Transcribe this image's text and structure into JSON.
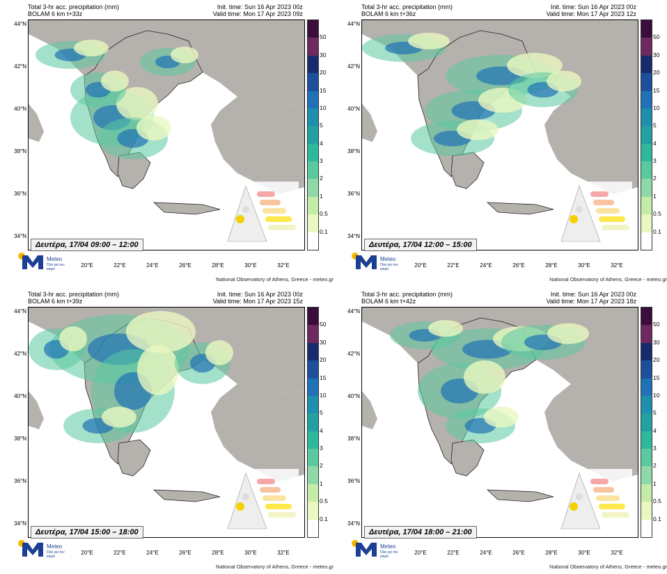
{
  "panels": [
    {
      "title": "Total 3-hr acc. precipitation (mm)",
      "model": "BOLAM 6 km t+33z",
      "init": "Init. time: Sun 16 Apr 2023 00z",
      "valid": "Valid time: Mon 17 Apr 2023 09z",
      "label": "Δευτέρα, 17/04 09:00 – 12:00"
    },
    {
      "title": "Total 3-hr acc. precipitation (mm)",
      "model": "BOLAM 6 km t+36z",
      "init": "Init. time: Sun 16 Apr 2023 00z",
      "valid": "Valid time: Mon 17 Apr 2023 12z",
      "label": "Δευτέρα, 17/04 12:00 – 15:00"
    },
    {
      "title": "Total 3-hr acc. precipitation (mm)",
      "model": "BOLAM 6 km t+39z",
      "init": "Init. time: Sun 16 Apr 2023 00z",
      "valid": "Valid time: Mon 17 Apr 2023 15z",
      "label": "Δευτέρα, 17/04 15:00 – 18:00"
    },
    {
      "title": "Total 3-hr acc. precipitation (mm)",
      "model": "BOLAM 6 km t+42z",
      "init": "Init. time: Sun 16 Apr 2023 00z",
      "valid": "Valid time: Mon 17 Apr 2023 18z",
      "label": "Δευτέρα, 17/04 18:00 – 21:00"
    }
  ],
  "lat_labels": [
    "44°N",
    "42°N",
    "40°N",
    "38°N",
    "36°N",
    "34°N"
  ],
  "lon_labels": [
    "20°E",
    "22°E",
    "24°E",
    "26°E",
    "28°E",
    "30°E",
    "32°E"
  ],
  "colorbar": {
    "labels": [
      "50",
      "30",
      "20",
      "15",
      "10",
      "5",
      "4",
      "3",
      "2",
      "1",
      "0.5",
      "0.1"
    ],
    "colors": [
      "#3a0d3d",
      "#6e2a5e",
      "#1a2a6e",
      "#1c4f9c",
      "#1f72b5",
      "#1f8fb0",
      "#23a0a2",
      "#2fb89a",
      "#5ac9a0",
      "#8fd9a8",
      "#c5eba9",
      "#eaf7c0",
      "#ffffff"
    ]
  },
  "logo": {
    "name": "Meteo",
    "tagline": "Όλα για τον καιρό"
  },
  "credit": "National Observatory of Athens, Greece - meteo.gr"
}
